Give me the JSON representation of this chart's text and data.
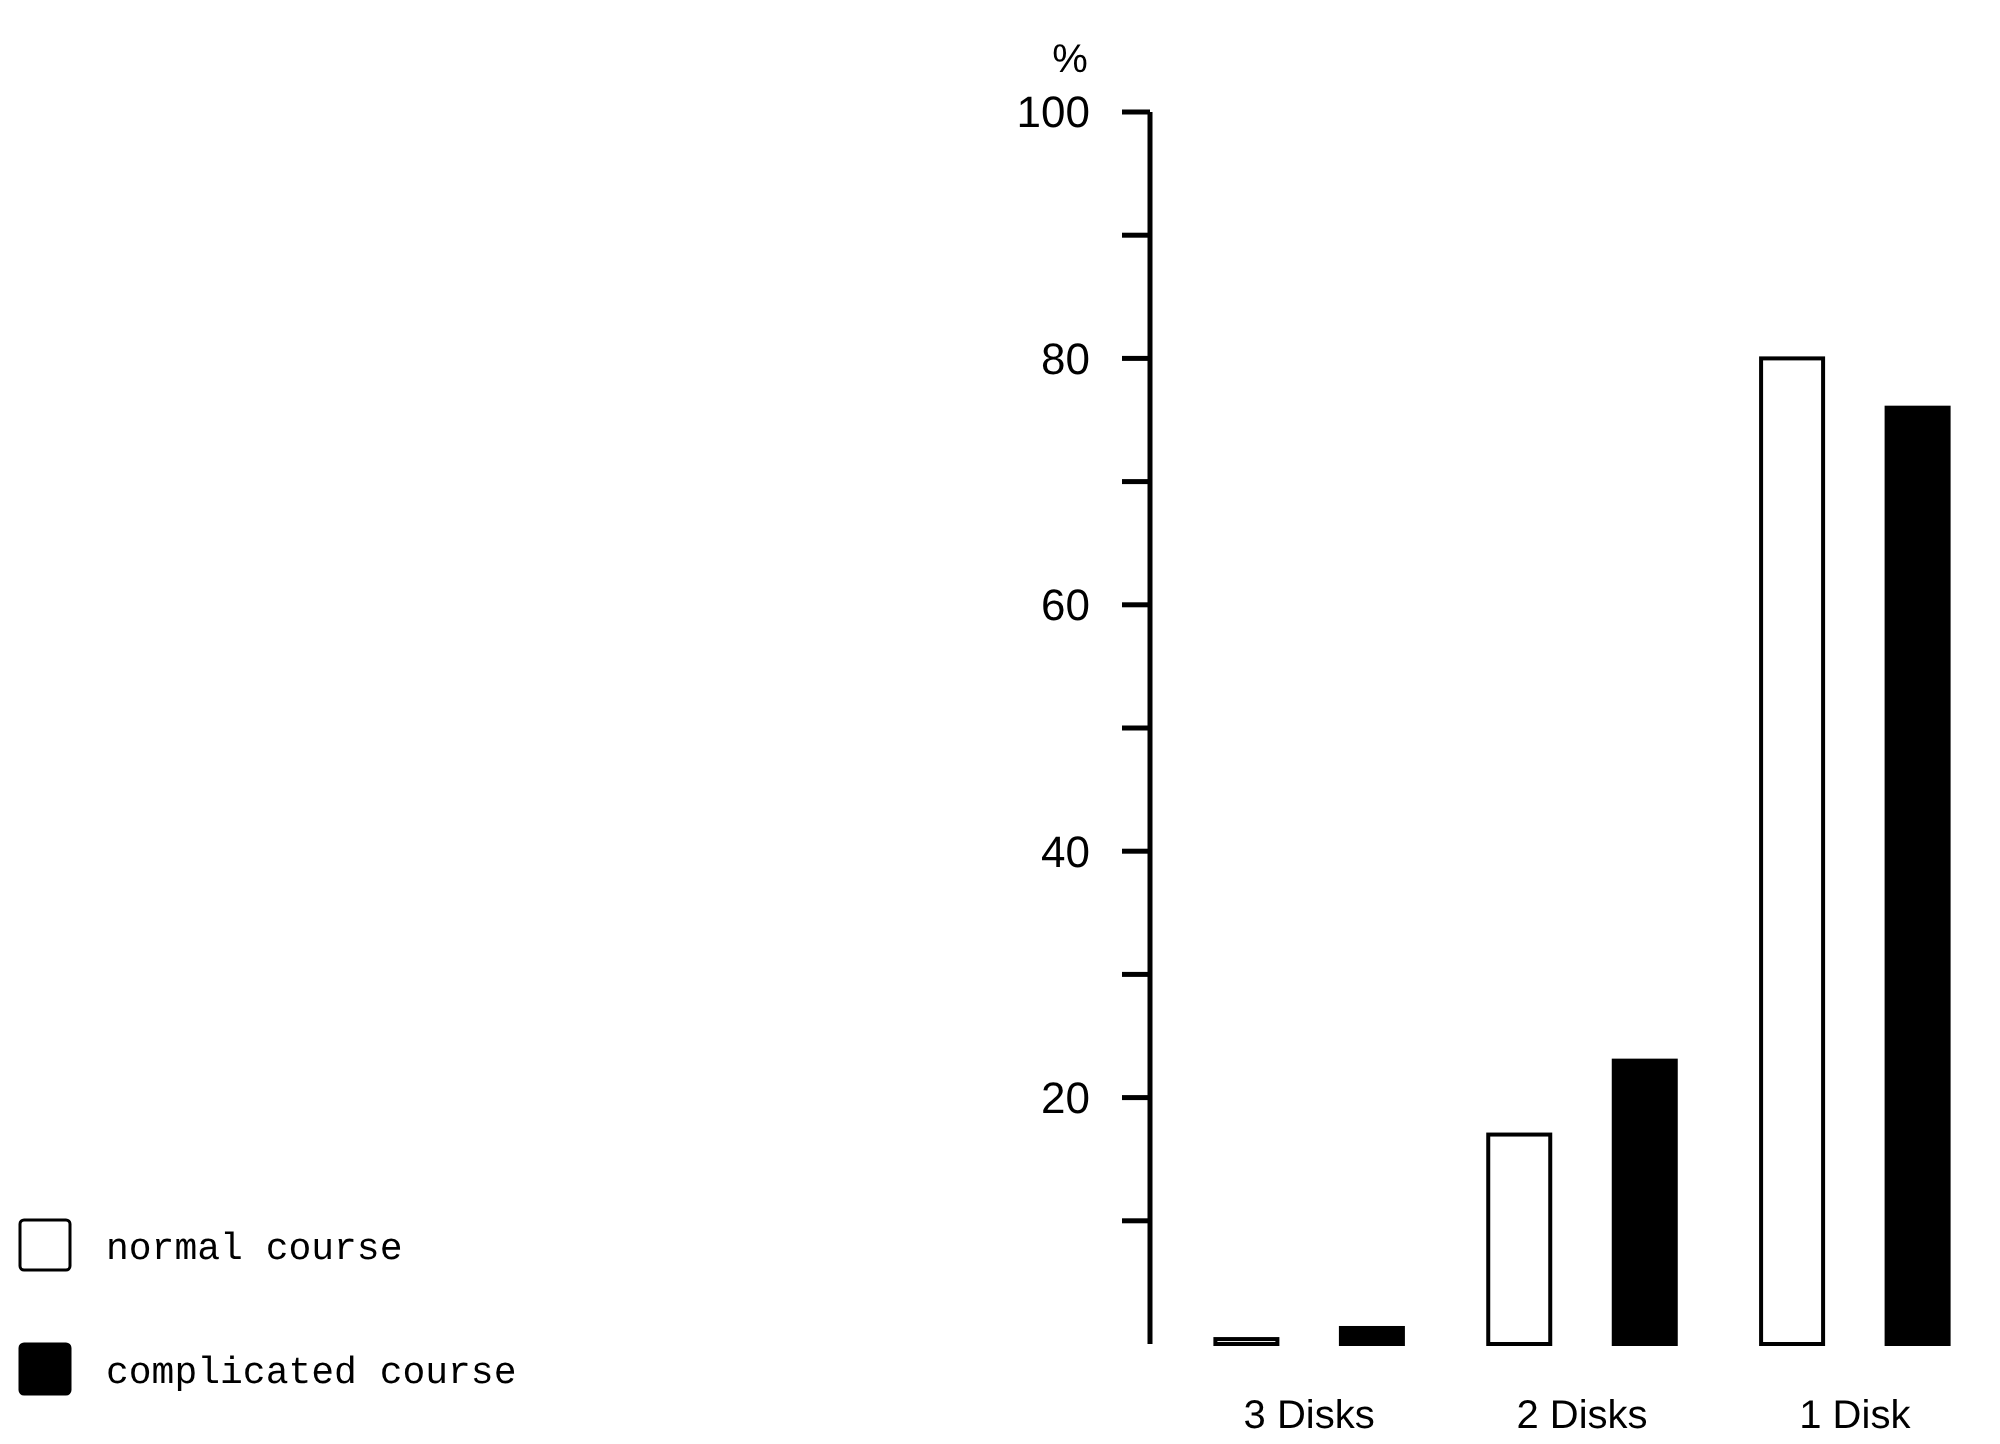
{
  "chart_data": {
    "type": "bar",
    "ylabel": "%",
    "categories": [
      "3 Disks",
      "2 Disks",
      "1 Disk"
    ],
    "series": [
      {
        "name": "normal course",
        "color": "#ffffff",
        "values": [
          0.4,
          17,
          80
        ]
      },
      {
        "name": "complicated course",
        "color": "#000000",
        "values": [
          1.3,
          23,
          76
        ]
      }
    ],
    "ylim": [
      0,
      100
    ],
    "yticks": [
      {
        "value": 10,
        "label": null
      },
      20,
      {
        "value": 30,
        "label": null
      },
      40,
      {
        "value": 50,
        "label": null
      },
      60,
      {
        "value": 70,
        "label": null
      },
      80,
      {
        "value": 90,
        "label": null
      },
      100
    ],
    "grid": false,
    "legend": "bottom left"
  }
}
